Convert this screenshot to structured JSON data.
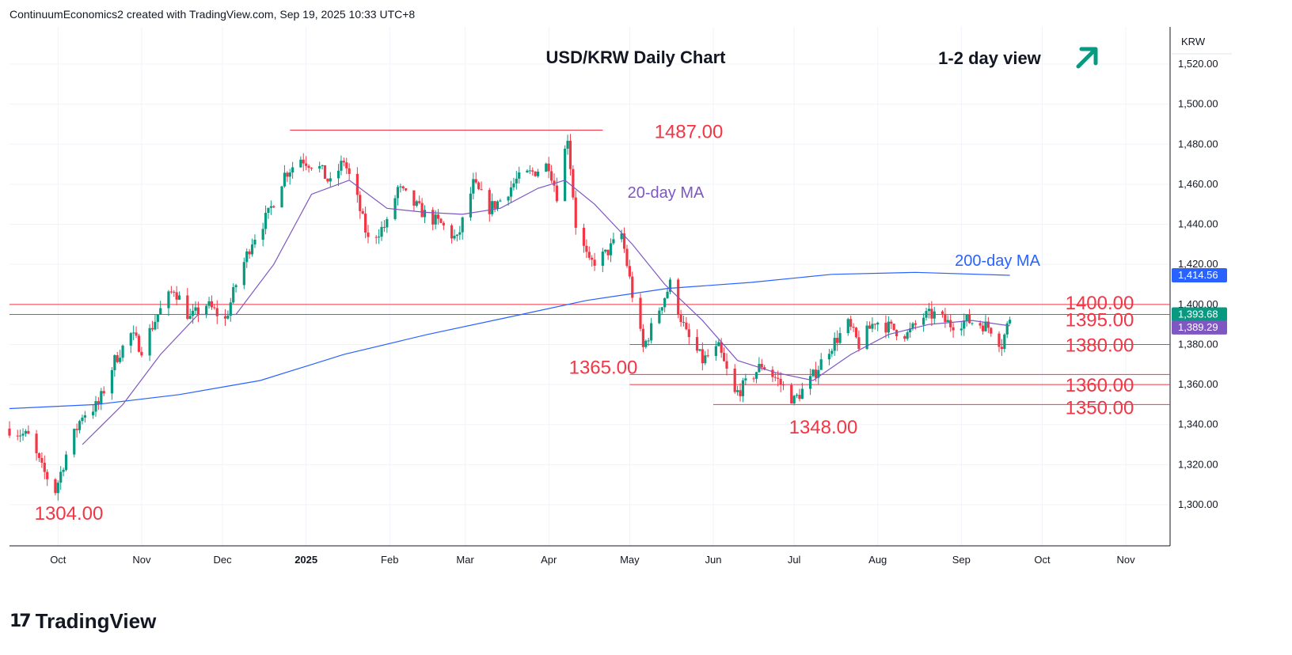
{
  "header": {
    "attribution": "ContinuumEconomics2 created with TradingView.com, Sep 19, 2025 10:33 UTC+8"
  },
  "brand": {
    "name": "TradingView",
    "logo_mark": "17"
  },
  "chart_data": {
    "type": "candlestick",
    "title": "USD/KRW Daily Chart",
    "annotation_view": "1-2 day view",
    "view_arrow": "up-right-arrow",
    "axis_currency": "KRW",
    "ylim": [
      1280,
      1530
    ],
    "y_ticks": [
      {
        "value": 1300,
        "label": "1,300.00"
      },
      {
        "value": 1320,
        "label": "1,320.00"
      },
      {
        "value": 1340,
        "label": "1,340.00"
      },
      {
        "value": 1360,
        "label": "1,360.00"
      },
      {
        "value": 1380,
        "label": "1,380.00"
      },
      {
        "value": 1400,
        "label": "1,400.00"
      },
      {
        "value": 1420,
        "label": "1,420.00"
      },
      {
        "value": 1440,
        "label": "1,440.00"
      },
      {
        "value": 1460,
        "label": "1,460.00"
      },
      {
        "value": 1480,
        "label": "1,480.00"
      },
      {
        "value": 1500,
        "label": "1,500.00"
      },
      {
        "value": 1520,
        "label": "1,520.00"
      }
    ],
    "x_ticks": [
      {
        "label": "Oct",
        "bold": false
      },
      {
        "label": "Nov",
        "bold": false
      },
      {
        "label": "Dec",
        "bold": false
      },
      {
        "label": "2025",
        "bold": true
      },
      {
        "label": "Feb",
        "bold": false
      },
      {
        "label": "Mar",
        "bold": false
      },
      {
        "label": "Apr",
        "bold": false
      },
      {
        "label": "May",
        "bold": false
      },
      {
        "label": "Jun",
        "bold": false
      },
      {
        "label": "Jul",
        "bold": false
      },
      {
        "label": "Aug",
        "bold": false
      },
      {
        "label": "Sep",
        "bold": false
      },
      {
        "label": "Oct",
        "bold": false
      },
      {
        "label": "Nov",
        "bold": false
      }
    ],
    "levels": [
      {
        "label": "1487.00",
        "value": 1487
      },
      {
        "label": "1400.00",
        "value": 1400
      },
      {
        "label": "1395.00",
        "value": 1395
      },
      {
        "label": "1380.00",
        "value": 1380
      },
      {
        "label": "1365.00",
        "value": 1365
      },
      {
        "label": "1360.00",
        "value": 1360
      },
      {
        "label": "1350.00",
        "value": 1350
      }
    ],
    "swing_labels": [
      {
        "label": "1304.00",
        "value": 1304
      },
      {
        "label": "1348.00",
        "value": 1348
      }
    ],
    "ma_labels": [
      {
        "label": "20-day MA"
      },
      {
        "label": "200-day MA"
      }
    ],
    "price_badges": [
      {
        "label": "1,414.56",
        "value": 1414.56,
        "color": "#2962ff"
      },
      {
        "label": "1,393.68",
        "value": 1393.68,
        "color": "#089981"
      },
      {
        "label": "1,389.29",
        "value": 1389.29,
        "color": "#7e57c2"
      }
    ],
    "close_path": [
      [
        "2024-09-13",
        1338
      ],
      [
        "2024-09-20",
        1334
      ],
      [
        "2024-09-25",
        1318
      ],
      [
        "2024-09-30",
        1307
      ],
      [
        "2024-10-04",
        1325
      ],
      [
        "2024-10-10",
        1345
      ],
      [
        "2024-10-16",
        1350
      ],
      [
        "2024-10-22",
        1372
      ],
      [
        "2024-10-28",
        1385
      ],
      [
        "2024-11-01",
        1378
      ],
      [
        "2024-11-07",
        1395
      ],
      [
        "2024-11-13",
        1408
      ],
      [
        "2024-11-19",
        1393
      ],
      [
        "2024-11-25",
        1400
      ],
      [
        "2024-12-02",
        1392
      ],
      [
        "2024-12-06",
        1410
      ],
      [
        "2024-12-12",
        1432
      ],
      [
        "2024-12-18",
        1445
      ],
      [
        "2024-12-24",
        1465
      ],
      [
        "2024-12-30",
        1473
      ],
      [
        "2025-01-06",
        1468
      ],
      [
        "2025-01-10",
        1460
      ],
      [
        "2025-01-15",
        1472
      ],
      [
        "2025-01-20",
        1452
      ],
      [
        "2025-01-24",
        1432
      ],
      [
        "2025-01-31",
        1440
      ],
      [
        "2025-02-04",
        1458
      ],
      [
        "2025-02-10",
        1450
      ],
      [
        "2025-02-14",
        1445
      ],
      [
        "2025-02-20",
        1440
      ],
      [
        "2025-02-26",
        1432
      ],
      [
        "2025-03-04",
        1460
      ],
      [
        "2025-03-10",
        1448
      ],
      [
        "2025-03-14",
        1452
      ],
      [
        "2025-03-20",
        1462
      ],
      [
        "2025-03-26",
        1466
      ],
      [
        "2025-04-01",
        1470
      ],
      [
        "2025-04-04",
        1455
      ],
      [
        "2025-04-08",
        1484
      ],
      [
        "2025-04-11",
        1440
      ],
      [
        "2025-04-16",
        1420
      ],
      [
        "2025-04-22",
        1425
      ],
      [
        "2025-04-28",
        1435
      ],
      [
        "2025-05-02",
        1405
      ],
      [
        "2025-05-06",
        1378
      ],
      [
        "2025-05-12",
        1398
      ],
      [
        "2025-05-16",
        1410
      ],
      [
        "2025-05-22",
        1385
      ],
      [
        "2025-05-28",
        1372
      ],
      [
        "2025-06-03",
        1378
      ],
      [
        "2025-06-09",
        1355
      ],
      [
        "2025-06-13",
        1360
      ],
      [
        "2025-06-19",
        1370
      ],
      [
        "2025-06-25",
        1362
      ],
      [
        "2025-07-01",
        1352
      ],
      [
        "2025-07-07",
        1362
      ],
      [
        "2025-07-14",
        1378
      ],
      [
        "2025-07-21",
        1390
      ],
      [
        "2025-07-25",
        1380
      ],
      [
        "2025-07-31",
        1392
      ],
      [
        "2025-08-06",
        1388
      ],
      [
        "2025-08-12",
        1385
      ],
      [
        "2025-08-18",
        1394
      ],
      [
        "2025-08-22",
        1395
      ],
      [
        "2025-08-28",
        1390
      ],
      [
        "2025-09-03",
        1392
      ],
      [
        "2025-09-09",
        1390
      ],
      [
        "2025-09-12",
        1388
      ],
      [
        "2025-09-16",
        1380
      ],
      [
        "2025-09-19",
        1393.68
      ]
    ],
    "sma20_path": [
      [
        "2024-10-10",
        1330
      ],
      [
        "2024-10-25",
        1350
      ],
      [
        "2024-11-08",
        1375
      ],
      [
        "2024-11-22",
        1395
      ],
      [
        "2024-12-06",
        1395
      ],
      [
        "2024-12-20",
        1420
      ],
      [
        "2025-01-03",
        1455
      ],
      [
        "2025-01-17",
        1462
      ],
      [
        "2025-01-31",
        1448
      ],
      [
        "2025-02-14",
        1446
      ],
      [
        "2025-02-28",
        1445
      ],
      [
        "2025-03-14",
        1448
      ],
      [
        "2025-03-28",
        1458
      ],
      [
        "2025-04-07",
        1462
      ],
      [
        "2025-04-18",
        1450
      ],
      [
        "2025-05-02",
        1430
      ],
      [
        "2025-05-14",
        1410
      ],
      [
        "2025-05-28",
        1392
      ],
      [
        "2025-06-10",
        1372
      ],
      [
        "2025-06-24",
        1366
      ],
      [
        "2025-07-08",
        1362
      ],
      [
        "2025-07-22",
        1375
      ],
      [
        "2025-08-05",
        1385
      ],
      [
        "2025-08-20",
        1390
      ],
      [
        "2025-09-05",
        1392
      ],
      [
        "2025-09-19",
        1389.29
      ]
    ],
    "sma200_path": [
      [
        "2024-09-13",
        1348
      ],
      [
        "2024-10-15",
        1350
      ],
      [
        "2024-11-15",
        1355
      ],
      [
        "2024-12-15",
        1362
      ],
      [
        "2025-01-15",
        1375
      ],
      [
        "2025-02-15",
        1385
      ],
      [
        "2025-03-15",
        1393
      ],
      [
        "2025-04-15",
        1402
      ],
      [
        "2025-05-15",
        1408
      ],
      [
        "2025-06-15",
        1411
      ],
      [
        "2025-07-15",
        1415
      ],
      [
        "2025-08-15",
        1416
      ],
      [
        "2025-09-19",
        1414.56
      ]
    ]
  },
  "colors": {
    "up": "#089981",
    "down": "#f23645",
    "sma20": "#7e57c2",
    "sma200": "#2962ff",
    "level": "#f23645",
    "text": "#131722",
    "grid": "#f0f3fa"
  }
}
